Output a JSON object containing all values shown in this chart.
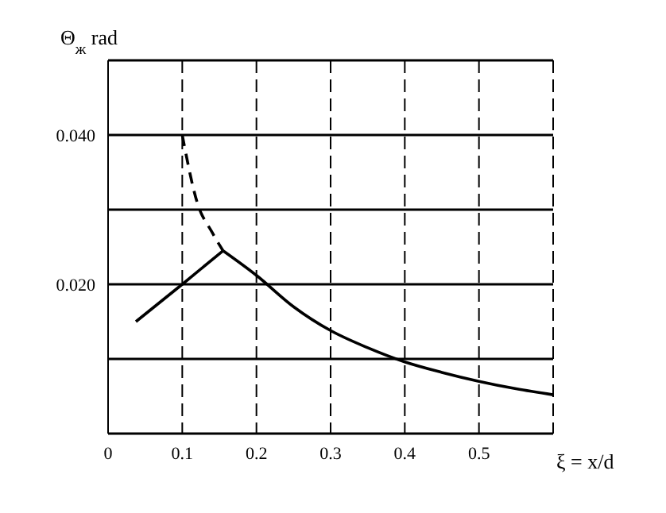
{
  "chart_data": {
    "type": "line",
    "ylabel": "Θ$_{ж}$ rad",
    "xlabel": "ξ = x/d",
    "series": [
      {
        "color": "#000000",
        "line_style": "solid",
        "x": [
          0.0375,
          0.1,
          0.155
        ],
        "values": [
          0.015,
          0.02,
          0.0245
        ]
      },
      {
        "color": "#000000",
        "line_style": "dashed",
        "x": [
          0.1,
          0.12,
          0.14,
          0.155
        ],
        "values": [
          0.04,
          0.031,
          0.027,
          0.0245
        ]
      },
      {
        "color": "#000000",
        "line_style": "solid",
        "x": [
          0.155,
          0.2,
          0.25,
          0.3,
          0.35,
          0.4,
          0.45,
          0.5,
          0.55,
          0.6
        ],
        "values": [
          0.0245,
          0.0212,
          0.017,
          0.0138,
          0.0115,
          0.0096,
          0.0082,
          0.007,
          0.006,
          0.0052
        ]
      }
    ],
    "xlim": [
      0,
      0.6
    ],
    "xticks": [
      0,
      0.1,
      0.2,
      0.3,
      0.4,
      0.5,
      {
        "value": 0.6,
        "label": null
      }
    ],
    "ylim": [
      0,
      0.05
    ],
    "yticks": [
      {
        "value": 0,
        "label": null
      },
      {
        "value": 0.01,
        "label": null
      },
      {
        "value": 0.02,
        "label": "0.020"
      },
      {
        "value": 0.03,
        "label": null
      },
      {
        "value": 0.04,
        "label": "0.040"
      },
      {
        "value": 0.05,
        "label": null
      }
    ],
    "grid": true,
    "marker": "none"
  }
}
